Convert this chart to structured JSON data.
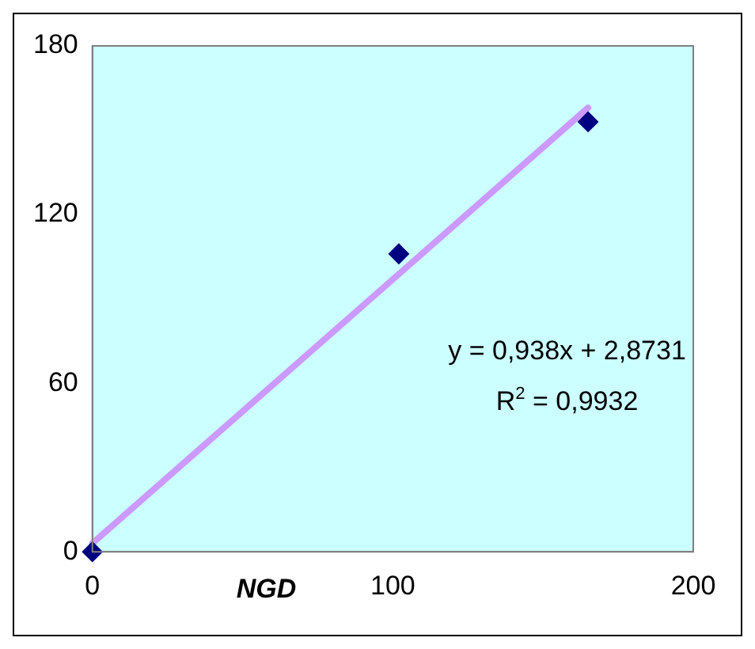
{
  "chart_data": {
    "type": "scatter",
    "xlabel": "NGD",
    "x": [
      0,
      102,
      165
    ],
    "series": [
      {
        "type": "scatter",
        "color": "#000080",
        "values": [
          0,
          106,
          153
        ],
        "marker": "diamond"
      },
      {
        "type": "line",
        "color": "#cc99ff",
        "x": [
          0,
          165
        ],
        "values": [
          3,
          158
        ],
        "marker": "none"
      }
    ],
    "xlim": [
      0,
      200
    ],
    "xticks": [
      0,
      100,
      200
    ],
    "ylim": [
      0,
      180
    ],
    "yticks": [
      0,
      60,
      120,
      180
    ],
    "grid": false,
    "legend": false,
    "annotations": [
      "y = 0,938x + 2,8731",
      "R$^{2}$ = 0,9932"
    ]
  }
}
